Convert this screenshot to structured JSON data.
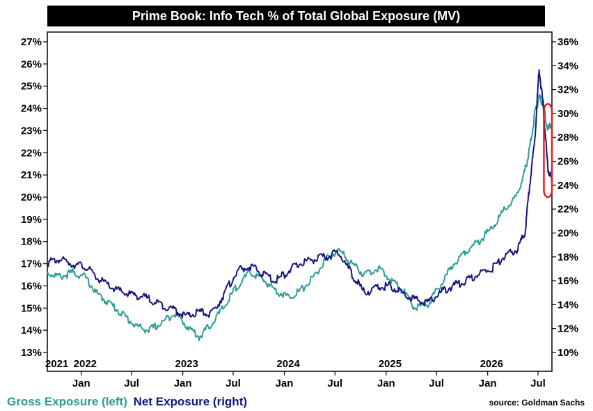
{
  "title": "Prime Book: Info Tech % of Total Global Exposure (MV)",
  "source": "source: Goldman Sachs",
  "legend": {
    "gross": "Gross Exposure (left)",
    "net": "Net Exposure (right)"
  },
  "colors": {
    "gross": "#2a9d95",
    "net": "#14147e",
    "highlight": "#e02020"
  },
  "chart_data": {
    "type": "line",
    "title": "Prime Book: Info Tech % of Total Global Exposure (MV)",
    "x_range": [
      "2021-09-01",
      "2026-08-20"
    ],
    "left_axis": {
      "ylim": [
        13,
        27
      ],
      "ticks": [
        "13%",
        "14%",
        "15%",
        "16%",
        "17%",
        "18%",
        "19%",
        "20%",
        "21%",
        "22%",
        "23%",
        "24%",
        "25%",
        "26%",
        "27%"
      ]
    },
    "right_axis": {
      "ylim": [
        10,
        36
      ],
      "ticks": [
        "10%",
        "12%",
        "14%",
        "16%",
        "18%",
        "20%",
        "22%",
        "24%",
        "26%",
        "28%",
        "30%",
        "32%",
        "34%",
        "36%"
      ]
    },
    "month_ticks": [
      {
        "label": "Jan",
        "date": "2022-01-01"
      },
      {
        "label": "Jul",
        "date": "2022-07-01"
      },
      {
        "label": "Jan",
        "date": "2023-01-01"
      },
      {
        "label": "Jul",
        "date": "2023-07-01"
      },
      {
        "label": "Jan",
        "date": "2024-01-01"
      },
      {
        "label": "Jul",
        "date": "2024-07-01"
      },
      {
        "label": "Jan",
        "date": "2025-01-01"
      },
      {
        "label": "Jul",
        "date": "2025-07-01"
      },
      {
        "label": "Jan",
        "date": "2026-01-01"
      },
      {
        "label": "Jul",
        "date": "2026-07-01"
      }
    ],
    "year_labels": [
      {
        "label": "2021",
        "date": "2021-10-05"
      },
      {
        "label": "2022",
        "date": "2022-01-15"
      },
      {
        "label": "2023",
        "date": "2023-01-15"
      },
      {
        "label": "2024",
        "date": "2024-01-15"
      },
      {
        "label": "2025",
        "date": "2025-01-15"
      },
      {
        "label": "2026",
        "date": "2026-01-15"
      }
    ],
    "series": [
      {
        "name": "Gross Exposure (left)",
        "axis": "left",
        "x": [
          "2021-09-01",
          "2021-10-15",
          "2021-12-01",
          "2022-01-15",
          "2022-03-01",
          "2022-04-15",
          "2022-06-01",
          "2022-07-15",
          "2022-09-01",
          "2022-10-15",
          "2022-12-01",
          "2023-01-15",
          "2023-03-01",
          "2023-04-15",
          "2023-06-01",
          "2023-07-15",
          "2023-09-01",
          "2023-10-15",
          "2023-12-01",
          "2024-01-15",
          "2024-03-01",
          "2024-04-15",
          "2024-06-01",
          "2024-07-15",
          "2024-09-01",
          "2024-10-15",
          "2024-12-01",
          "2025-01-15",
          "2025-03-01",
          "2025-04-15",
          "2025-06-01",
          "2025-07-15",
          "2025-09-01",
          "2025-10-15",
          "2025-12-01",
          "2026-01-15",
          "2026-03-01",
          "2026-04-15",
          "2026-05-15",
          "2026-06-01",
          "2026-06-20",
          "2026-07-05",
          "2026-07-20",
          "2026-08-05",
          "2026-08-20"
        ],
        "values": [
          16.6,
          16.4,
          16.6,
          16.4,
          15.6,
          15.2,
          14.7,
          14.2,
          14.0,
          14.3,
          14.8,
          14.2,
          13.7,
          14.3,
          15.1,
          16.0,
          16.6,
          16.3,
          15.8,
          15.5,
          15.8,
          16.4,
          17.2,
          17.6,
          17.0,
          16.5,
          16.8,
          16.3,
          15.8,
          15.0,
          15.2,
          16.0,
          17.0,
          17.6,
          18.0,
          18.6,
          19.4,
          20.0,
          21.2,
          22.2,
          23.8,
          24.5,
          24.2,
          23.0,
          23.4
        ]
      },
      {
        "name": "Net Exposure (right)",
        "axis": "right",
        "x": [
          "2021-09-01",
          "2021-10-15",
          "2021-12-01",
          "2022-01-15",
          "2022-03-01",
          "2022-04-15",
          "2022-06-01",
          "2022-07-15",
          "2022-09-01",
          "2022-10-15",
          "2022-12-01",
          "2023-01-15",
          "2023-03-01",
          "2023-04-15",
          "2023-06-01",
          "2023-07-15",
          "2023-09-01",
          "2023-10-15",
          "2023-12-01",
          "2024-01-15",
          "2024-03-01",
          "2024-04-15",
          "2024-06-01",
          "2024-07-15",
          "2024-09-01",
          "2024-10-15",
          "2024-12-01",
          "2025-01-15",
          "2025-03-01",
          "2025-04-15",
          "2025-06-01",
          "2025-07-15",
          "2025-09-01",
          "2025-10-15",
          "2025-12-01",
          "2026-01-15",
          "2026-03-01",
          "2026-04-15",
          "2026-05-15",
          "2026-06-01",
          "2026-06-20",
          "2026-07-05",
          "2026-07-20",
          "2026-08-05",
          "2026-08-20"
        ],
        "values": [
          17.5,
          17.8,
          17.4,
          17.2,
          16.2,
          15.5,
          15.0,
          14.8,
          14.5,
          14.0,
          13.6,
          13.0,
          13.4,
          13.2,
          15.0,
          16.8,
          17.2,
          16.6,
          16.0,
          16.8,
          17.5,
          17.8,
          18.0,
          18.4,
          16.5,
          15.0,
          15.4,
          15.6,
          15.0,
          14.4,
          14.2,
          15.0,
          15.6,
          16.0,
          16.6,
          17.0,
          18.0,
          18.6,
          20.0,
          24.0,
          28.0,
          33.8,
          30.5,
          25.5,
          24.2
        ]
      }
    ],
    "annotations": [
      {
        "type": "box",
        "color": "#e02020",
        "x_start": "2026-07-22",
        "x_end": "2026-08-20",
        "y_left_bottom": 20.0,
        "y_left_top": 24.2
      }
    ],
    "grid": false,
    "legend_placement": "bottom-left"
  }
}
